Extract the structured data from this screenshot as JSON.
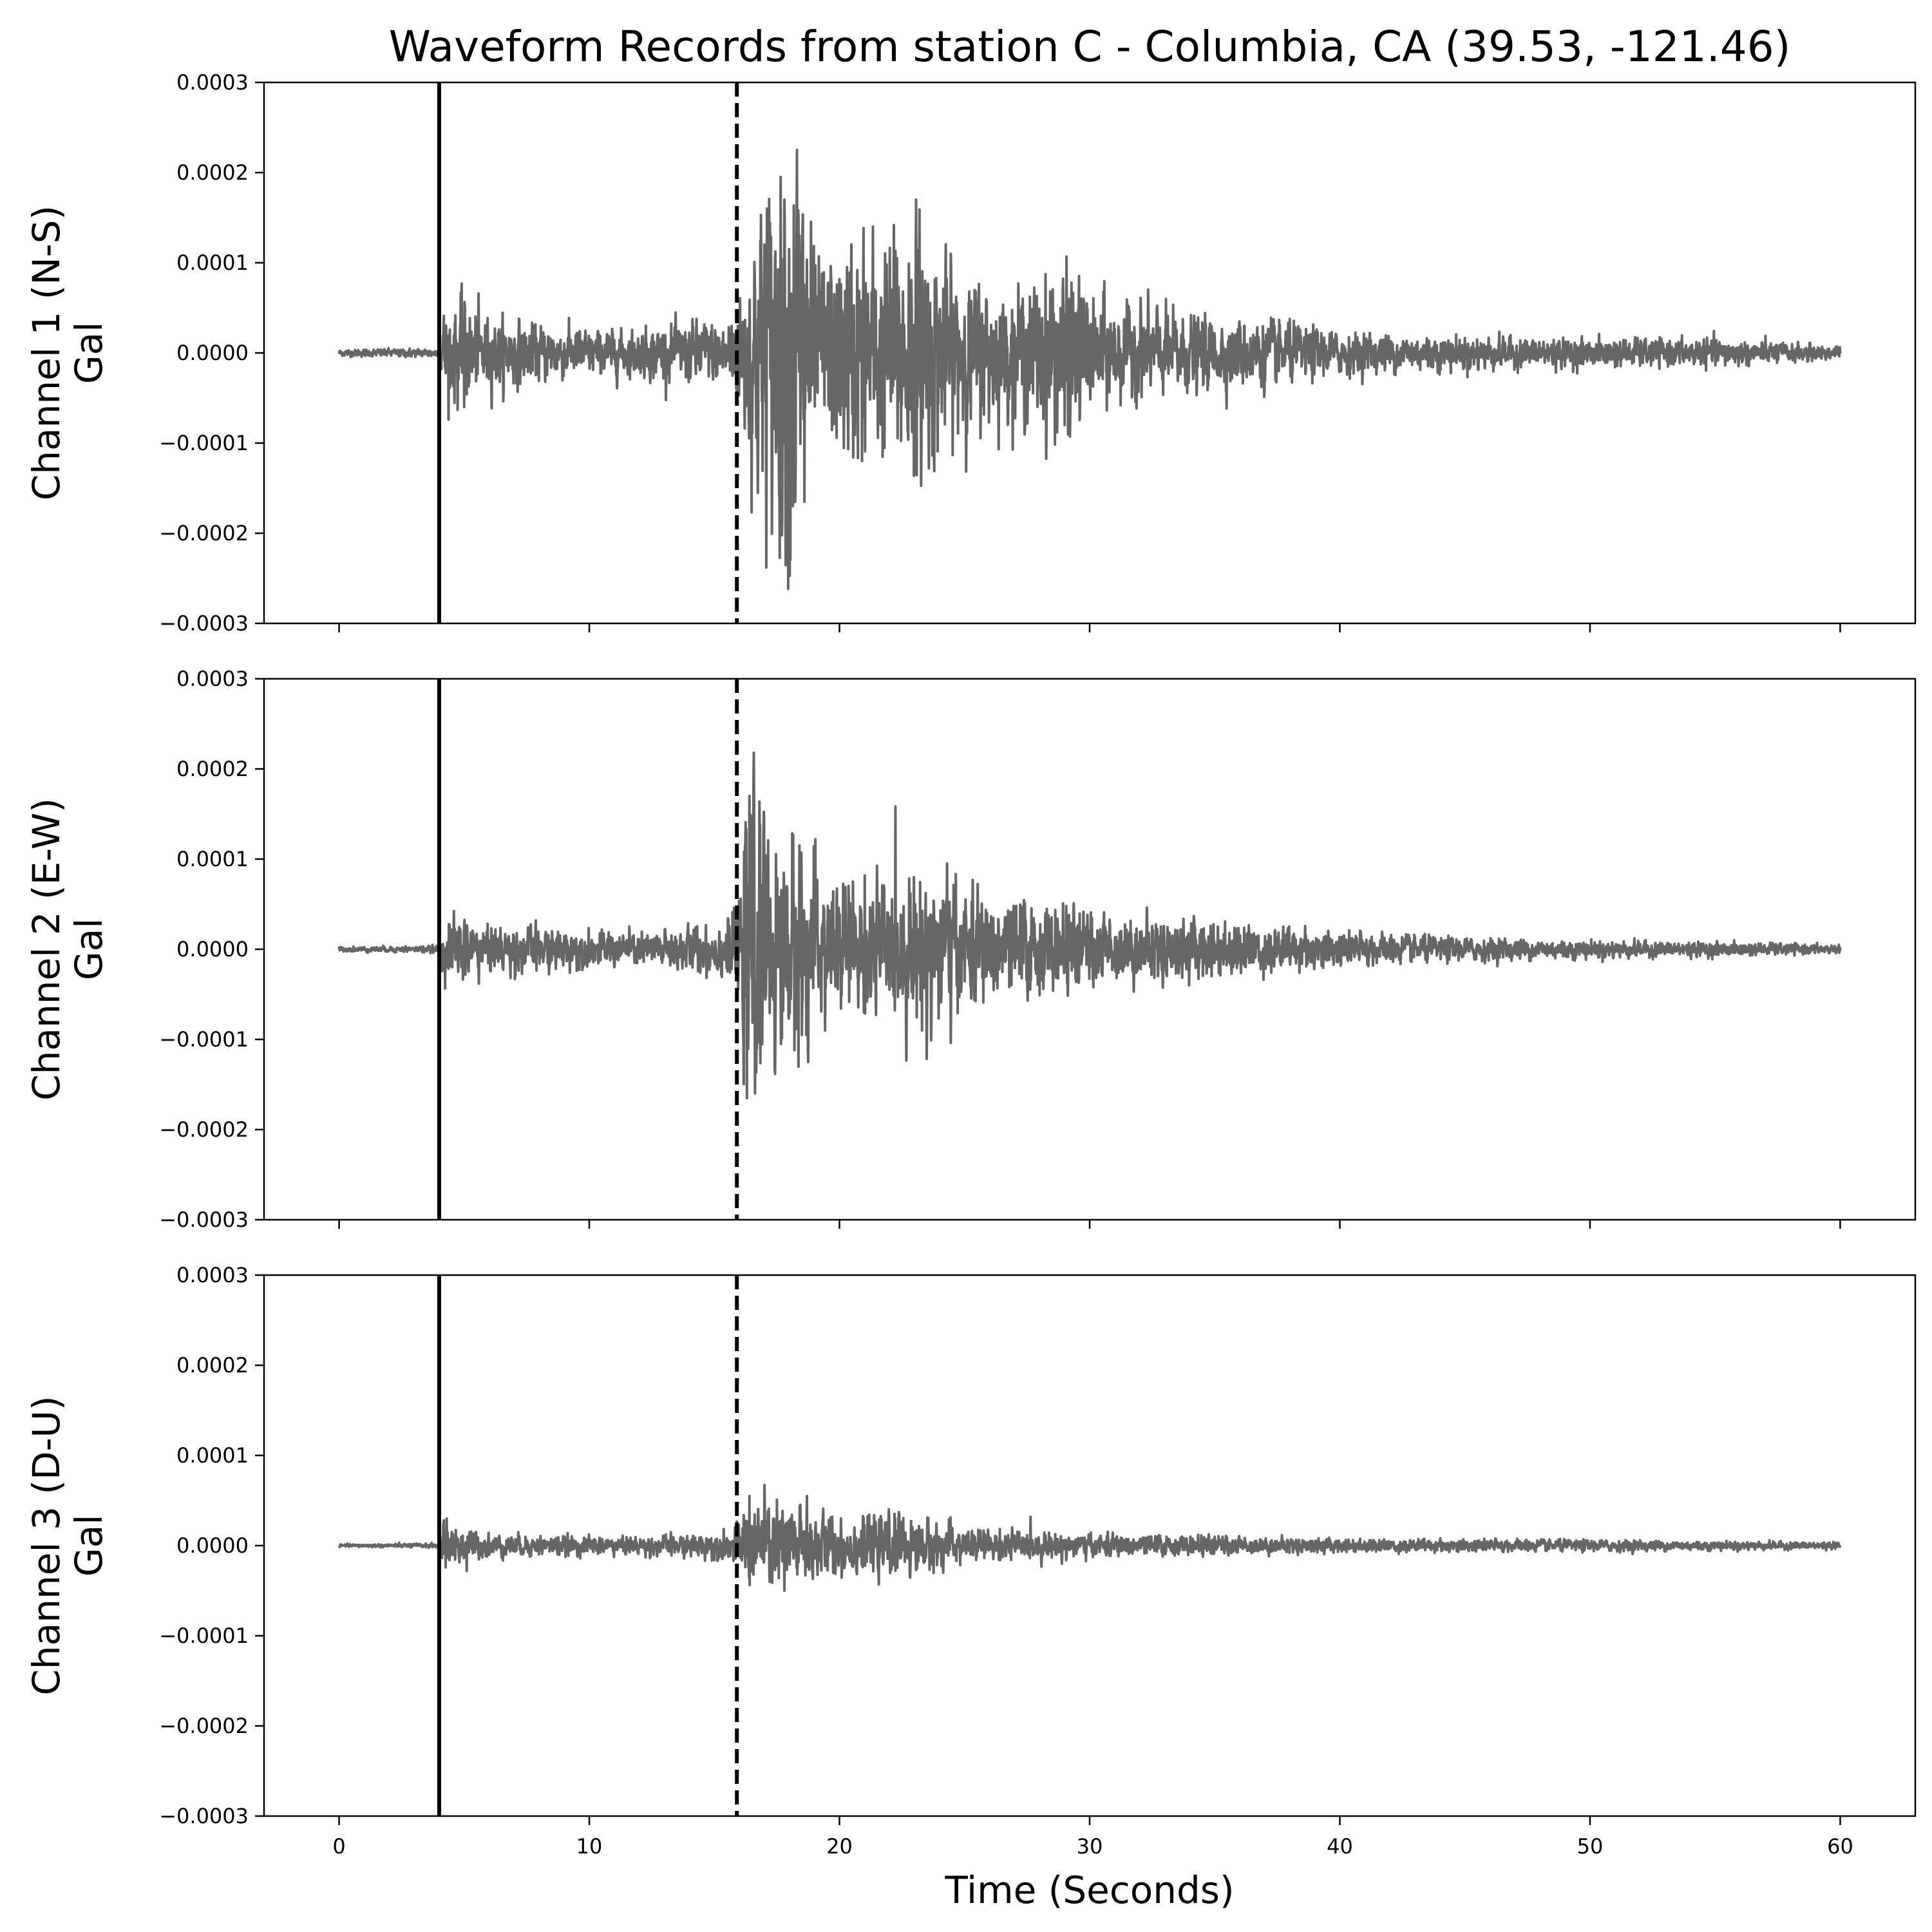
{
  "chart_data": {
    "type": "line",
    "title": "Waveform Records from station C - Columbia, CA (39.53, -121.46)",
    "xlabel": "Time (Seconds)",
    "xlim": [
      -3,
      63
    ],
    "xticks": [
      0,
      10,
      20,
      30,
      40,
      50,
      60
    ],
    "xtick_labels": [
      "0",
      "10",
      "20",
      "30",
      "40",
      "50",
      "60"
    ],
    "yticks": [
      -0.0003,
      -0.0002,
      -0.0001,
      0.0,
      0.0001,
      0.0002,
      0.0003
    ],
    "ytick_labels": [
      "−0.0003",
      "−0.0002",
      "−0.0001",
      "0.0000",
      "0.0001",
      "0.0002",
      "0.0003"
    ],
    "line_color": "#666666",
    "marker_color": "#000000",
    "markers": [
      {
        "kind": "solid",
        "x": 4.0
      },
      {
        "kind": "dashed",
        "x": 15.9
      }
    ],
    "panels": [
      {
        "ylabel_line1": "Channel 1 (N-S)",
        "ylabel_line2": "Gal",
        "ylim": [
          -0.0003,
          0.0003
        ],
        "envelope": [
          [
            0,
            3e-06
          ],
          [
            4.0,
            4e-06
          ],
          [
            4.2,
            4e-05
          ],
          [
            5.0,
            4.5e-05
          ],
          [
            6,
            3e-05
          ],
          [
            8,
            2.5e-05
          ],
          [
            10,
            2e-05
          ],
          [
            12,
            2e-05
          ],
          [
            13.5,
            2.5e-05
          ],
          [
            15.5,
            3e-05
          ],
          [
            16.0,
            5e-05
          ],
          [
            16.7,
            0.00013
          ],
          [
            17.5,
            0.00016
          ],
          [
            18.3,
            0.00022
          ],
          [
            19,
            8e-05
          ],
          [
            20,
            9e-05
          ],
          [
            21,
            0.0001
          ],
          [
            22,
            0.0001
          ],
          [
            23,
            0.00012
          ],
          [
            24,
            8e-05
          ],
          [
            25,
            7e-05
          ],
          [
            27,
            5e-05
          ],
          [
            29,
            8e-05
          ],
          [
            30,
            5e-05
          ],
          [
            32,
            4e-05
          ],
          [
            35,
            3e-05
          ],
          [
            37,
            3e-05
          ],
          [
            40,
            1.8e-05
          ],
          [
            45,
            1.5e-05
          ],
          [
            50,
            1.2e-05
          ],
          [
            55,
            1.2e-05
          ],
          [
            60,
            6e-06
          ]
        ],
        "peaks": [
          {
            "x": 18.3,
            "y": 0.000225
          },
          {
            "x": 17.8,
            "y": 0.00017
          },
          {
            "x": 17.1,
            "y": 0.00016
          },
          {
            "x": 18.6,
            "y": -0.000165
          },
          {
            "x": 17.6,
            "y": -0.00015
          },
          {
            "x": 22.3,
            "y": 0.000105
          },
          {
            "x": 29,
            "y": 8e-05
          },
          {
            "x": 29,
            "y": -8e-05
          },
          {
            "x": 5.0,
            "y": -6e-05
          },
          {
            "x": 20.9,
            "y": -0.00012
          }
        ]
      },
      {
        "ylabel_line1": "Channel 2 (E-W)",
        "ylabel_line2": "Gal",
        "ylim": [
          -0.0003,
          0.0003
        ],
        "envelope": [
          [
            0,
            2e-06
          ],
          [
            4.0,
            3e-06
          ],
          [
            4.2,
            2.5e-05
          ],
          [
            5.0,
            3e-05
          ],
          [
            6,
            2e-05
          ],
          [
            8,
            2e-05
          ],
          [
            10,
            1.5e-05
          ],
          [
            12,
            1.5e-05
          ],
          [
            14,
            2e-05
          ],
          [
            15.5,
            2.5e-05
          ],
          [
            16.0,
            4e-05
          ],
          [
            16.4,
            0.00015
          ],
          [
            17,
            0.0001
          ],
          [
            18.5,
            9e-05
          ],
          [
            19,
            7e-05
          ],
          [
            20,
            6e-05
          ],
          [
            22,
            6e-05
          ],
          [
            24,
            7e-05
          ],
          [
            25,
            5e-05
          ],
          [
            28,
            4e-05
          ],
          [
            30,
            3e-05
          ],
          [
            35,
            2.5e-05
          ],
          [
            40,
            1.5e-05
          ],
          [
            45,
            1e-05
          ],
          [
            50,
            8e-06
          ],
          [
            55,
            6e-06
          ],
          [
            60,
            4e-06
          ]
        ],
        "peaks": [
          {
            "x": 16.4,
            "y": 0.00017
          },
          {
            "x": 16.3,
            "y": -0.000165
          },
          {
            "x": 16.7,
            "y": -0.00011
          },
          {
            "x": 18.4,
            "y": 0.000115
          },
          {
            "x": 24.3,
            "y": 9.5e-05
          },
          {
            "x": 23.3,
            "y": -9e-05
          }
        ]
      },
      {
        "ylabel_line1": "Channel 3 (D-U)",
        "ylabel_line2": "Gal",
        "ylim": [
          -0.0003,
          0.0003
        ],
        "envelope": [
          [
            0,
            1e-06
          ],
          [
            4.0,
            2e-06
          ],
          [
            4.2,
            2e-05
          ],
          [
            5.0,
            1.5e-05
          ],
          [
            6,
            1e-05
          ],
          [
            10,
            8e-06
          ],
          [
            12,
            8e-06
          ],
          [
            14,
            1e-05
          ],
          [
            15.5,
            1.2e-05
          ],
          [
            16.0,
            2e-05
          ],
          [
            16.5,
            4e-05
          ],
          [
            18,
            4e-05
          ],
          [
            19,
            3e-05
          ],
          [
            20,
            2.5e-05
          ],
          [
            23,
            2.5e-05
          ],
          [
            25,
            1.5e-05
          ],
          [
            30,
            1e-05
          ],
          [
            40,
            6e-06
          ],
          [
            50,
            5e-06
          ],
          [
            60,
            3e-06
          ]
        ],
        "peaks": [
          {
            "x": 16.4,
            "y": 5.5e-05
          },
          {
            "x": 18.7,
            "y": 5.5e-05
          },
          {
            "x": 17.8,
            "y": -5e-05
          },
          {
            "x": 4.3,
            "y": 3e-05
          },
          {
            "x": 5.1,
            "y": -2.8e-05
          }
        ]
      }
    ]
  }
}
